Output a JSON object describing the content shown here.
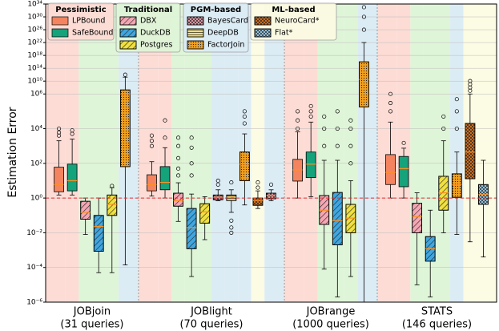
{
  "chart_data": {
    "type": "box",
    "ylabel": "Estimation Error",
    "yscale": "log",
    "ylim": [
      1e-06,
      1e+34
    ],
    "yticks": [
      {
        "value": 1e-06,
        "label": "10⁻⁶"
      },
      {
        "value": 0.0001,
        "label": "10⁻⁴"
      },
      {
        "value": 0.01,
        "label": "10⁻²"
      },
      {
        "value": 1,
        "label": "10⁰"
      },
      {
        "value": 100,
        "label": "10²"
      },
      {
        "value": 10000,
        "label": "10⁴"
      },
      {
        "value": 1000000.0,
        "label": "10⁶"
      },
      {
        "value": 10000000000.0,
        "label": "10¹⁰"
      },
      {
        "value": 100000000000000.0,
        "label": "10¹⁴"
      },
      {
        "value": 1e+18,
        "label": "10¹⁸"
      },
      {
        "value": 1e+22,
        "label": "10²²"
      },
      {
        "value": 1e+26,
        "label": "10²⁶"
      },
      {
        "value": 1e+30,
        "label": "10³⁰"
      },
      {
        "value": 1e+34,
        "label": "10³⁴"
      }
    ],
    "grid": true,
    "reference_line": {
      "value": 1,
      "color": "#e03030"
    },
    "categories": [
      {
        "name": "Pessimistic",
        "color": "#fddcd5"
      },
      {
        "name": "Traditional",
        "color": "#dff5d8"
      },
      {
        "name": "PGM-based",
        "color": "#dcecf5"
      },
      {
        "name": "ML-based",
        "color": "#fcfbe3"
      }
    ],
    "methods": [
      {
        "name": "LPBound",
        "category": 0,
        "color": "#f4845f",
        "hatch": ""
      },
      {
        "name": "SafeBound",
        "category": 0,
        "color": "#14a37a",
        "hatch": ""
      },
      {
        "name": "DBX",
        "category": 1,
        "color": "#f4a6b3",
        "hatch": "//"
      },
      {
        "name": "DuckDB",
        "category": 1,
        "color": "#3fa6e0",
        "hatch": "//"
      },
      {
        "name": "Postgres",
        "category": 1,
        "color": "#f0e040",
        "hatch": "//"
      },
      {
        "name": "BayesCard",
        "category": 2,
        "color": "#f4a6b3",
        "hatch": "xx"
      },
      {
        "name": "DeepDB",
        "category": 2,
        "color": "#f5e07a",
        "hatch": "--"
      },
      {
        "name": "FactorJoin",
        "category": 2,
        "color": "#f0a020",
        "hatch": ".."
      },
      {
        "name": "NeuroCard*",
        "category": 3,
        "color": "#e07820",
        "hatch": "xx"
      },
      {
        "name": "Flat*",
        "category": 3,
        "color": "#9fd3f0",
        "hatch": "xx"
      }
    ],
    "groups": [
      {
        "name": "JOBjoin",
        "subtitle": "(31 queries)",
        "boxes": [
          {
            "method": 0,
            "whislo": 1.5,
            "q1": 2.3,
            "med": 6,
            "q3": 60,
            "whishi": 2000,
            "fliers": [
              4000,
              6000,
              10000
            ]
          },
          {
            "method": 1,
            "whislo": 1.5,
            "q1": 2.6,
            "med": 10,
            "q3": 90,
            "whishi": 2500,
            "fliers": [
              5000,
              8000
            ]
          },
          {
            "method": 2,
            "whislo": 0.008,
            "q1": 0.06,
            "med": 0.15,
            "q3": 0.65,
            "whishi": 1,
            "fliers": []
          },
          {
            "method": 3,
            "whislo": 5e-05,
            "q1": 0.00085,
            "med": 0.023,
            "q3": 0.1,
            "whishi": 1,
            "fliers": []
          },
          {
            "method": 4,
            "whislo": 5e-05,
            "q1": 0.1,
            "med": 0.43,
            "q3": 1.5,
            "whishi": 4,
            "fliers": [
              5
            ]
          },
          {
            "method": 7,
            "whislo": 0.00014,
            "q1": 65,
            "med": 1000000.0,
            "q3": 18000000.0,
            "whishi": 180000000000.0,
            "fliers": [
              1000000000000.0
            ]
          }
        ]
      },
      {
        "name": "JOBlight",
        "subtitle": "(70 queries)",
        "boxes": [
          {
            "method": 0,
            "whislo": 1.3,
            "q1": 2.6,
            "med": 6,
            "q3": 22,
            "whishi": 125,
            "fliers": [
              1000,
              2000,
              4000
            ]
          },
          {
            "method": 1,
            "whislo": 1,
            "q1": 3,
            "med": 8,
            "q3": 65,
            "whishi": 800,
            "fliers": [
              3000,
              30000
            ]
          },
          {
            "method": 2,
            "whislo": 0.045,
            "q1": 0.34,
            "med": 0.7,
            "q3": 1.9,
            "whishi": 7.6,
            "fliers": [
              20,
              50,
              200,
              1000,
              3000
            ]
          },
          {
            "method": 3,
            "whislo": 3e-05,
            "q1": 0.0012,
            "med": 0.02,
            "q3": 0.25,
            "whishi": 1.7,
            "fliers": [
              20,
              100,
              800,
              3000
            ]
          },
          {
            "method": 4,
            "whislo": 0.004,
            "q1": 0.036,
            "med": 0.16,
            "q3": 0.47,
            "whishi": 1.2,
            "fliers": []
          },
          {
            "method": 5,
            "whislo": 0.7,
            "q1": 0.8,
            "med": 1.1,
            "q3": 1.5,
            "whishi": 3,
            "fliers": [
              6,
              10
            ]
          },
          {
            "method": 6,
            "whislo": 0.15,
            "q1": 0.72,
            "med": 1.1,
            "q3": 1.5,
            "whishi": 3,
            "fliers": [
              0.05,
              0.02,
              0.01,
              8
            ]
          },
          {
            "method": 7,
            "whislo": 0.4,
            "q1": 10,
            "med": 90,
            "q3": 450,
            "whishi": 5000,
            "fliers": [
              20000,
              50000,
              100000
            ]
          },
          {
            "method": 8,
            "whislo": 0.25,
            "q1": 0.38,
            "med": 0.72,
            "q3": 1,
            "whishi": 2.6,
            "fliers": [
              4,
              8
            ]
          },
          {
            "method": 5,
            "whislo": 0.7,
            "q1": 0.9,
            "med": 1.4,
            "q3": 1.9,
            "whishi": 3,
            "fliers": [
              6
            ]
          }
        ]
      },
      {
        "name": "JOBrange",
        "subtitle": "(1000 queries)",
        "boxes": [
          {
            "method": 0,
            "whislo": 1,
            "q1": 9.5,
            "med": 42,
            "q3": 170,
            "whishi": 6600,
            "fliers": [
              10000,
              30000,
              100000
            ]
          },
          {
            "method": 1,
            "whislo": 1.2,
            "q1": 15,
            "med": 90,
            "q3": 450,
            "whishi": 24000,
            "fliers": [
              50000,
              100000,
              200000
            ]
          },
          {
            "method": 2,
            "whislo": 8e-05,
            "q1": 0.03,
            "med": 0.2,
            "q3": 1.4,
            "whishi": 150,
            "fliers": [
              1000,
              10000,
              50000
            ]
          },
          {
            "method": 3,
            "whislo": 2e-06,
            "q1": 0.002,
            "med": 0.05,
            "q3": 2.1,
            "whishi": 150,
            "fliers": [
              1000,
              10000,
              100000
            ]
          },
          {
            "method": 4,
            "whislo": 3e-05,
            "q1": 0.01,
            "med": 0.07,
            "q3": 0.43,
            "whishi": 10,
            "fliers": [
              100,
              1000,
              10000,
              30000
            ]
          },
          {
            "method": 7,
            "whislo": 1e-06,
            "q1": 180000.0,
            "med": 30000000000.0,
            "q3": 1e+16,
            "whishi": 1e+22,
            "fliers": [
              1e+26,
              1e+30,
              1e+33
            ]
          }
        ]
      },
      {
        "name": "STATS",
        "subtitle": "(146 queries)",
        "boxes": [
          {
            "method": 0,
            "whislo": 1,
            "q1": 6,
            "med": 30,
            "q3": 320,
            "whishi": 24000,
            "fliers": [
              100000,
              300000,
              1000000
            ]
          },
          {
            "method": 1,
            "whislo": 1,
            "q1": 4.5,
            "med": 50,
            "q3": 250,
            "whishi": 750,
            "fliers": [
              1500
            ]
          },
          {
            "method": 2,
            "whislo": 1e-05,
            "q1": 0.01,
            "med": 0.085,
            "q3": 0.5,
            "whishi": 2,
            "fliers": []
          },
          {
            "method": 3,
            "whislo": 2e-06,
            "q1": 0.00023,
            "med": 0.0012,
            "q3": 0.006,
            "whishi": 0.2,
            "fliers": []
          },
          {
            "method": 4,
            "whislo": 0.01,
            "q1": 0.2,
            "med": 2,
            "q3": 18,
            "whishi": 2000,
            "fliers": [
              10000,
              50000
            ]
          },
          {
            "method": 7,
            "whislo": 0.008,
            "q1": 1.1,
            "med": 6,
            "q3": 25,
            "whishi": 450,
            "fliers": [
              10000,
              100000,
              500000
            ]
          },
          {
            "method": 8,
            "whislo": 0.003,
            "q1": 13,
            "med": 450,
            "q3": 20000,
            "whishi": 1000000,
            "fliers": [
              10000000.0,
              100000000.0,
              1000000000.0,
              10000000000.0
            ]
          },
          {
            "method": 9,
            "whislo": 0.0004,
            "q1": 0.43,
            "med": 1.6,
            "q3": 6,
            "whishi": 150,
            "fliers": []
          }
        ]
      }
    ]
  }
}
